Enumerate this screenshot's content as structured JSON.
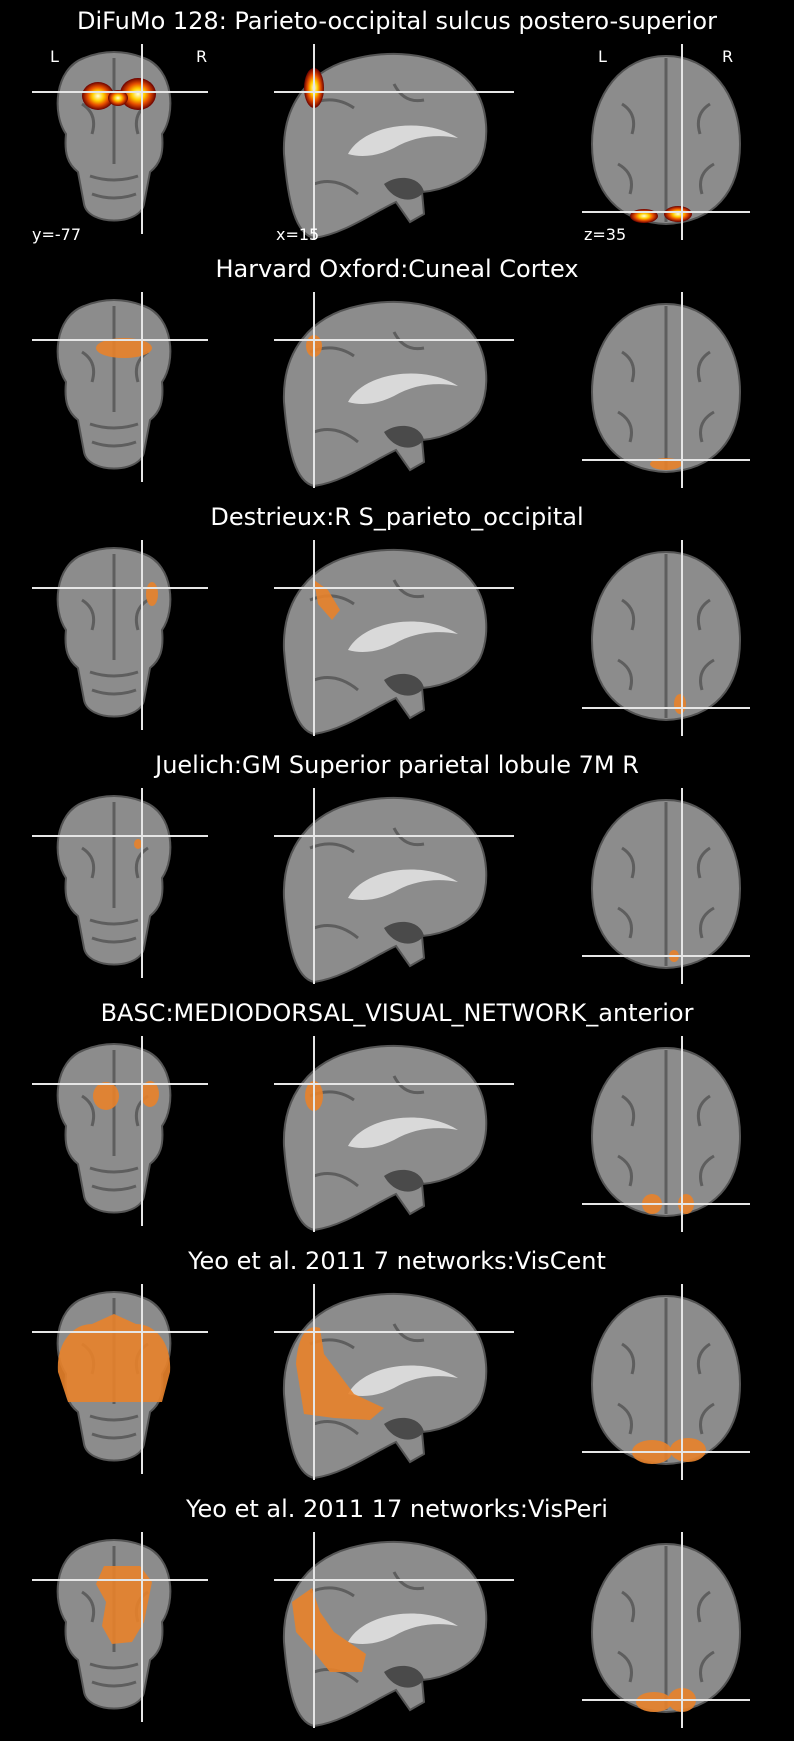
{
  "panels": [
    {
      "title": "DiFuMo 128: Parieto-occipital sulcus postero-superior",
      "style": "heat",
      "orient": {
        "left": "L",
        "right": "R"
      },
      "coords": {
        "y": "y=-77",
        "x": "x=15",
        "z": "z=35"
      }
    },
    {
      "title": "Harvard Oxford:Cuneal Cortex",
      "style": "orange"
    },
    {
      "title": "Destrieux:R S_parieto_occipital",
      "style": "orange"
    },
    {
      "title": "Juelich:GM Superior parietal lobule 7M R",
      "style": "orange"
    },
    {
      "title": "BASC:MEDIODORSAL_VISUAL_NETWORK_anterior",
      "style": "orange"
    },
    {
      "title": "Yeo et al. 2011 7 networks:VisCent",
      "style": "orange"
    },
    {
      "title": "Yeo et al. 2011 17 networks:VisPeri",
      "style": "orange"
    }
  ],
  "colors": {
    "overlay": "#E8822A",
    "crosshair": "#E6E6E6",
    "brain": "#8C8C8C"
  }
}
